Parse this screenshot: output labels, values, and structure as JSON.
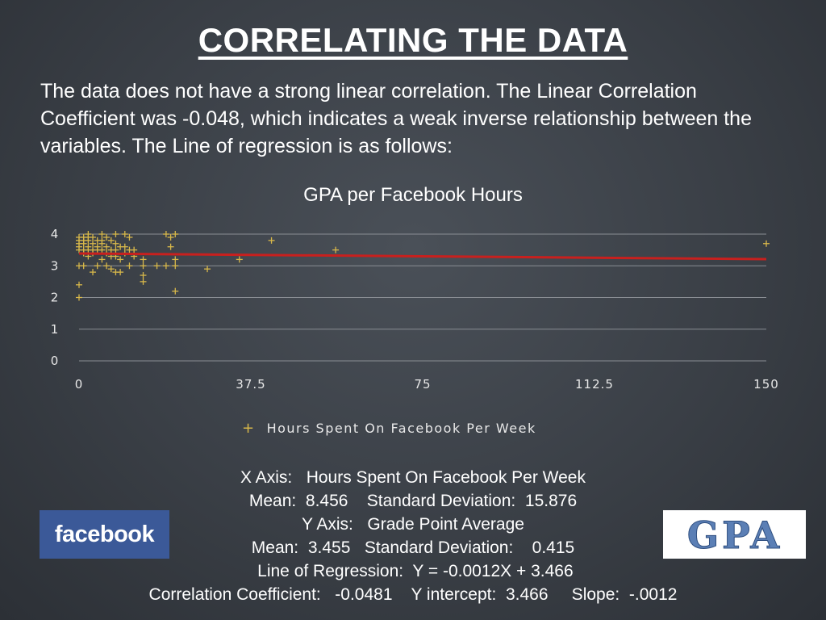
{
  "slide": {
    "title": "CORRELATING  THE DATA",
    "intro": "The data does not have a strong linear correlation. The Linear Correlation Coefficient was -0.048, which indicates a weak inverse relationship between the variables. The Line of regression is as follows:"
  },
  "chart_data": {
    "type": "scatter",
    "title": "GPA per Facebook Hours",
    "xlabel": "",
    "ylabel": "",
    "xlim": [
      0,
      150
    ],
    "ylim": [
      0,
      4
    ],
    "x_ticks": [
      "0",
      "37.5",
      "75",
      "112.5",
      "150"
    ],
    "y_ticks": [
      "0",
      "1",
      "2",
      "3",
      "4"
    ],
    "grid": true,
    "legend": {
      "position": "bottom",
      "entries": [
        "Hours Spent On Facebook Per Week"
      ]
    },
    "series": [
      {
        "name": "Hours Spent On Facebook Per Week",
        "points": [
          [
            0,
            3.9
          ],
          [
            0,
            3.8
          ],
          [
            0,
            3.7
          ],
          [
            0,
            3.6
          ],
          [
            0,
            3.5
          ],
          [
            0,
            3.0
          ],
          [
            0,
            2.4
          ],
          [
            0,
            2.0
          ],
          [
            1,
            3.9
          ],
          [
            1,
            3.8
          ],
          [
            1,
            3.7
          ],
          [
            1,
            3.5
          ],
          [
            1,
            3.4
          ],
          [
            1,
            3.0
          ],
          [
            2,
            4.0
          ],
          [
            2,
            3.9
          ],
          [
            2,
            3.8
          ],
          [
            2,
            3.6
          ],
          [
            2,
            3.5
          ],
          [
            2,
            3.3
          ],
          [
            3,
            3.9
          ],
          [
            3,
            3.7
          ],
          [
            3,
            3.5
          ],
          [
            3,
            3.4
          ],
          [
            3,
            2.8
          ],
          [
            4,
            3.8
          ],
          [
            4,
            3.6
          ],
          [
            4,
            3.5
          ],
          [
            4,
            3.0
          ],
          [
            5,
            4.0
          ],
          [
            5,
            3.8
          ],
          [
            5,
            3.7
          ],
          [
            5,
            3.5
          ],
          [
            5,
            3.2
          ],
          [
            6,
            3.9
          ],
          [
            6,
            3.6
          ],
          [
            6,
            3.4
          ],
          [
            6,
            3.0
          ],
          [
            7,
            3.8
          ],
          [
            7,
            3.5
          ],
          [
            7,
            3.3
          ],
          [
            7,
            2.9
          ],
          [
            8,
            4.0
          ],
          [
            8,
            3.7
          ],
          [
            8,
            3.5
          ],
          [
            8,
            3.3
          ],
          [
            8,
            2.8
          ],
          [
            9,
            3.6
          ],
          [
            9,
            3.2
          ],
          [
            9,
            2.8
          ],
          [
            10,
            4.0
          ],
          [
            10,
            3.6
          ],
          [
            10,
            3.4
          ],
          [
            11,
            3.9
          ],
          [
            11,
            3.5
          ],
          [
            11,
            3.0
          ],
          [
            12,
            3.5
          ],
          [
            12,
            3.3
          ],
          [
            14,
            3.2
          ],
          [
            14,
            3.0
          ],
          [
            14,
            2.7
          ],
          [
            14,
            2.5
          ],
          [
            17,
            3.0
          ],
          [
            19,
            4.0
          ],
          [
            19,
            3.0
          ],
          [
            20,
            3.9
          ],
          [
            20,
            3.6
          ],
          [
            21,
            4.0
          ],
          [
            21,
            3.2
          ],
          [
            21,
            3.0
          ],
          [
            21,
            2.2
          ],
          [
            28,
            2.9
          ],
          [
            35,
            3.2
          ],
          [
            42,
            3.8
          ],
          [
            56,
            3.5
          ],
          [
            150,
            3.7
          ]
        ]
      }
    ],
    "regression": {
      "label": "Line of Regression",
      "slope": -0.0012,
      "intercept": 3.466,
      "color": "#c8201e"
    },
    "marker_color": "#d8b84a",
    "grid_color": "#8a8e94"
  },
  "stats": {
    "line1": "X Axis:   Hours Spent On Facebook Per Week",
    "line2": "Mean:  8.456    Standard Deviation:  15.876",
    "line3": "Y Axis:   Grade Point Average",
    "line4": "Mean:  3.455   Standard Deviation:    0.415",
    "line5": " Line of Regression:  Y = -0.0012X + 3.466",
    "line6": "Correlation Coefficient:   -0.0481    Y intercept:  3.466     Slope:  -.0012"
  },
  "logos": {
    "facebook": {
      "text": "facebook",
      "icon": "facebook-logo",
      "color": "#3b5998"
    },
    "gpa": {
      "text": "GPA",
      "icon": "gpa-logo",
      "color": "#5b7fb5"
    }
  }
}
